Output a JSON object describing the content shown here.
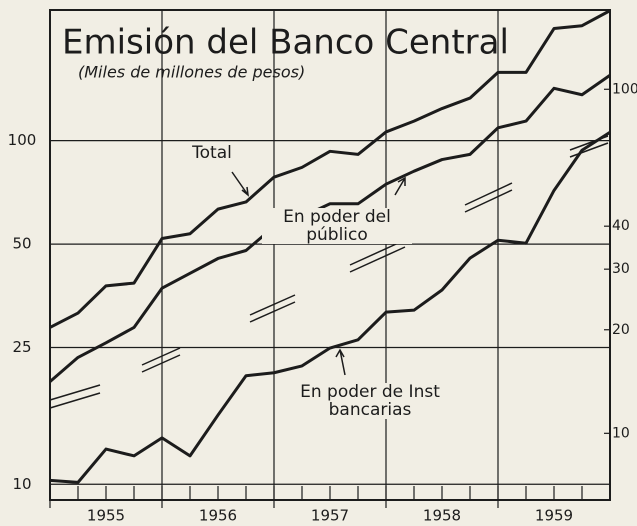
{
  "chart_data": {
    "type": "line",
    "title": "Emisión del Banco Central",
    "subtitle": "(Miles de millones de pesos)",
    "x": [
      1955,
      1955.25,
      1955.5,
      1955.75,
      1956,
      1956.25,
      1956.5,
      1956.75,
      1957,
      1957.25,
      1957.5,
      1957.75,
      1958,
      1958.25,
      1958.5,
      1958.75,
      1959,
      1959.25,
      1959.5,
      1959.75,
      1960
    ],
    "xlim": [
      1955,
      1960
    ],
    "xticks": [
      {
        "value": 1955,
        "label": "1955"
      },
      {
        "value": 1956,
        "label": "1956"
      },
      {
        "value": 1957,
        "label": "1957"
      },
      {
        "value": 1958,
        "label": "1958"
      },
      {
        "value": 1959,
        "label": "1959"
      }
    ],
    "ylim": [
      9,
      240
    ],
    "yticks": [
      10,
      25,
      50,
      100
    ],
    "log_scale": true,
    "y2lim": [
      6.4,
      170
    ],
    "y2ticks": [
      10,
      20,
      30,
      40,
      100
    ],
    "grid": true,
    "series": [
      {
        "name": "Total",
        "color": "#1c1c1c",
        "values": [
          28.6,
          31.5,
          37.8,
          38.5,
          51.9,
          53.6,
          63.2,
          66.3,
          78.3,
          83.6,
          93.1,
          91.2,
          106,
          114,
          124,
          133,
          158,
          158,
          212,
          216,
          239
        ]
      },
      {
        "name": "En poder del público",
        "color": "#1c1c1c",
        "values": [
          19.9,
          23.4,
          25.8,
          28.6,
          37.2,
          41.1,
          45.4,
          47.9,
          56.2,
          60,
          65.5,
          65.5,
          74.7,
          81.5,
          88.1,
          91.2,
          109,
          114,
          142,
          136,
          155
        ]
      },
      {
        "name": "En poder de Inst bancarias",
        "color": "#1c1c1c",
        "axis": "y2",
        "values": [
          7.3,
          7.2,
          9.0,
          8.6,
          9.7,
          8.6,
          11.3,
          14.7,
          15.0,
          15.7,
          17.7,
          18.7,
          22.5,
          22.8,
          26.1,
          32.3,
          36.4,
          35.7,
          50.8,
          66.5,
          75.0
        ]
      }
    ]
  }
}
